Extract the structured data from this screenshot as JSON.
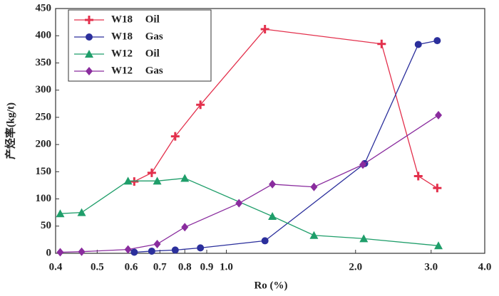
{
  "chart_data": {
    "type": "line",
    "x_label": "Ro (%)",
    "y_label": "产烃率(kg/t)",
    "xscale": "log",
    "xlim": [
      0.4,
      4.0
    ],
    "xticks": [
      0.4,
      0.5,
      0.6,
      0.7,
      0.8,
      0.9,
      {
        "value": 1,
        "label": "1.0"
      },
      {
        "value": 2,
        "label": "2.0"
      },
      {
        "value": 3,
        "label": "3.0"
      },
      {
        "value": 4,
        "label": "4.0"
      }
    ],
    "ylim": [
      0,
      450
    ],
    "yticks": [
      0,
      50,
      100,
      150,
      200,
      250,
      300,
      350,
      400,
      450
    ],
    "legend": "upper left",
    "series": [
      {
        "name": "W18 Oil",
        "color": "#e3304c",
        "marker": "plus",
        "x": [
          0.61,
          0.67,
          0.76,
          0.87,
          1.23,
          2.3,
          2.8,
          3.1
        ],
        "values": [
          132,
          148,
          215,
          273,
          412,
          385,
          142,
          120
        ]
      },
      {
        "name": "W18 Gas",
        "color": "#2b2f9c",
        "marker": "circle",
        "x": [
          0.61,
          0.67,
          0.76,
          0.87,
          1.23,
          2.1,
          2.8,
          3.1
        ],
        "values": [
          2,
          4,
          6,
          10,
          23,
          165,
          384,
          391
        ]
      },
      {
        "name": "W12 Oil",
        "color": "#1f9e6a",
        "marker": "triangle",
        "x": [
          0.41,
          0.46,
          0.59,
          0.69,
          0.8,
          1.28,
          1.6,
          2.09,
          3.12
        ],
        "values": [
          73,
          75,
          133,
          133,
          138,
          68,
          33,
          27,
          14
        ]
      },
      {
        "name": "W12 Gas",
        "color": "#8a2c9e",
        "marker": "diamond",
        "x": [
          0.41,
          0.46,
          0.59,
          0.69,
          0.8,
          1.07,
          1.28,
          1.6,
          2.08,
          3.12
        ],
        "values": [
          2,
          3,
          7,
          17,
          48,
          92,
          127,
          122,
          163,
          254
        ]
      }
    ]
  }
}
